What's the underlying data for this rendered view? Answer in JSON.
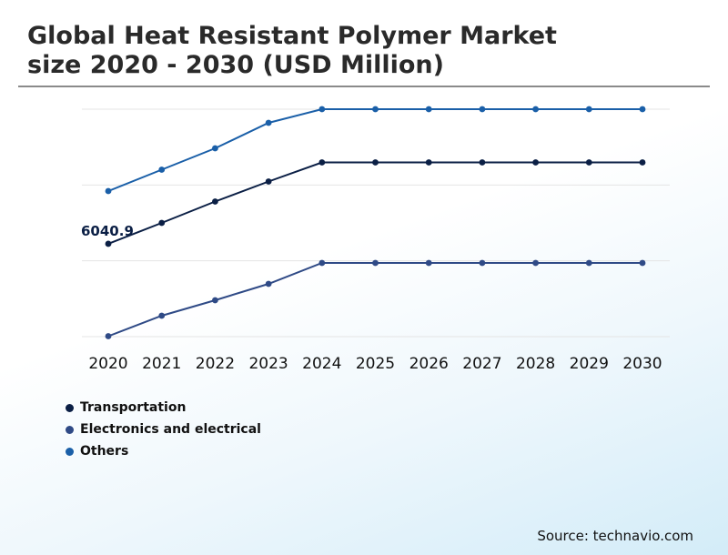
{
  "header": {
    "title_line1": "Global Heat Resistant Polymer Market",
    "title_line2": "size 2020 - 2030 (USD Million)"
  },
  "chart_data": {
    "type": "line",
    "title": "Global Heat Resistant Polymer Market size 2020 - 2030 (USD Million)",
    "categories": [
      "2020",
      "2021",
      "2022",
      "2023",
      "2024",
      "2025",
      "2026",
      "2027",
      "2028",
      "2029",
      "2030"
    ],
    "annotation": {
      "text": "6040.9",
      "series": "Transportation",
      "category": "2020"
    },
    "ylim": [
      4000,
      9000
    ],
    "grid": true,
    "series": [
      {
        "name": "Transportation",
        "color": "#0b1f45",
        "values": [
          6040.9,
          6500,
          6970,
          7410,
          7830,
          7830,
          7830,
          7830,
          7830,
          7830,
          7830
        ]
      },
      {
        "name": "Electronics and electrical",
        "color": "#2f4a86",
        "values": [
          4010,
          4460,
          4800,
          5160,
          5620,
          5620,
          5620,
          5620,
          5620,
          5620,
          5620
        ]
      },
      {
        "name": "Others",
        "color": "#1a5fa8",
        "values": [
          7200,
          7670,
          8140,
          8700,
          9000,
          9000,
          9000,
          9000,
          9000,
          9000,
          9000
        ]
      }
    ]
  },
  "source": "Source: technavio.com"
}
